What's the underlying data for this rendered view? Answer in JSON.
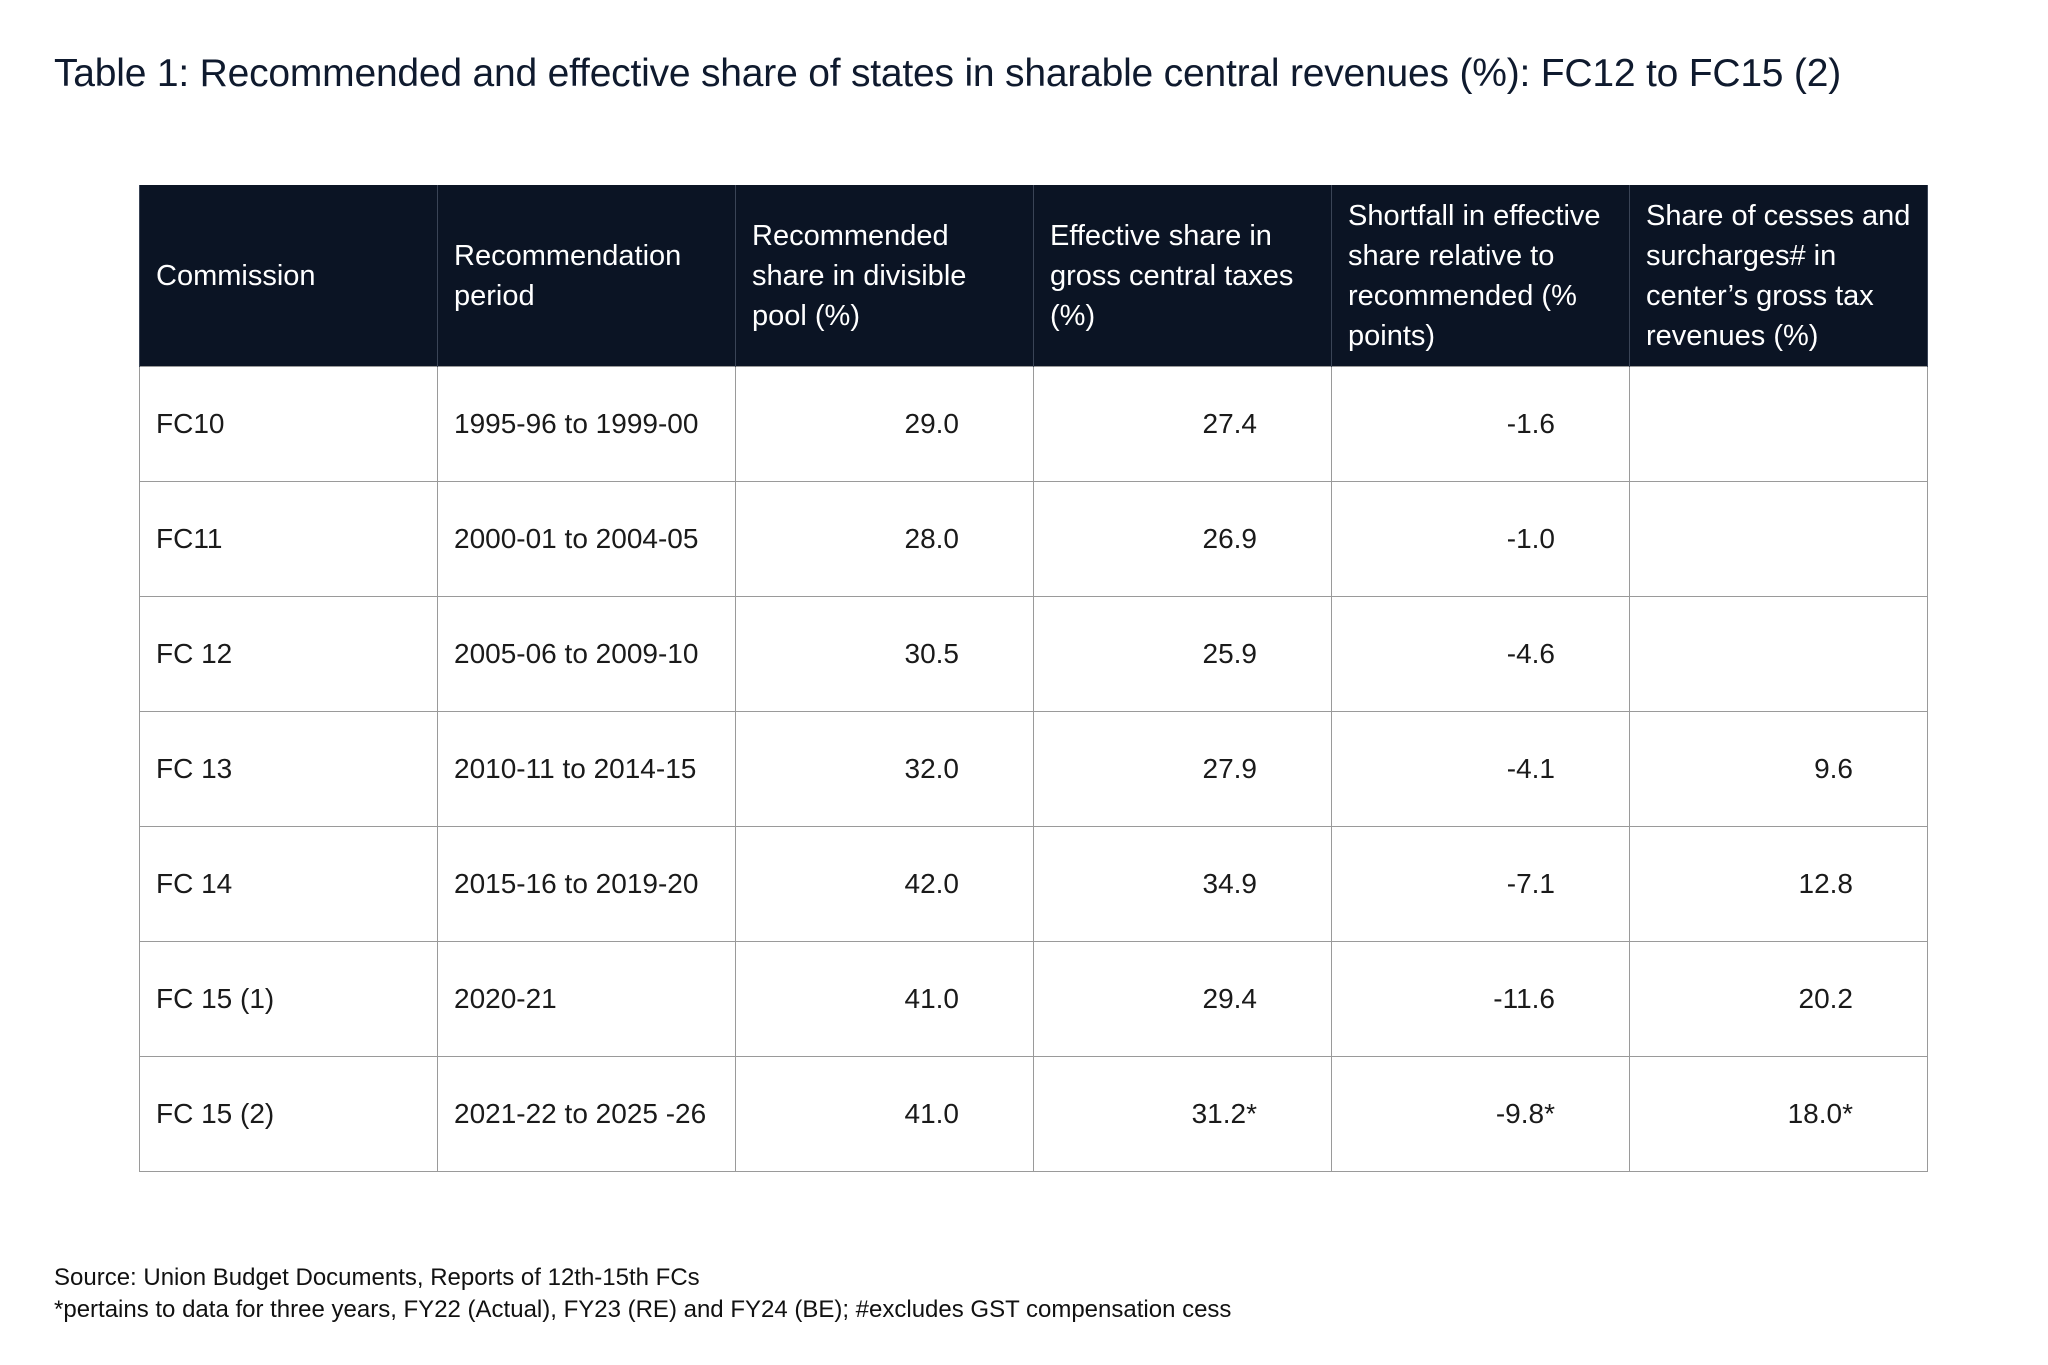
{
  "title": "Table 1: Recommended and effective share of states in sharable central revenues (%): FC12 to FC15 (2)",
  "table": {
    "headers": [
      "Commission",
      "Recommendation period",
      "Recommended share in divisible pool (%)",
      "Effective share in gross central taxes (%)",
      "Shortfall in effective share relative to recommended (% points)",
      "Share of cesses and surcharges# in center’s gross tax revenues (%)"
    ],
    "rows": [
      [
        "FC10",
        "1995-96 to 1999-00",
        "29.0",
        "27.4",
        "-1.6",
        ""
      ],
      [
        "FC11",
        "2000-01 to 2004-05",
        "28.0",
        "26.9",
        "-1.0",
        ""
      ],
      [
        "FC 12",
        "2005-06 to 2009-10",
        "30.5",
        "25.9",
        "-4.6",
        ""
      ],
      [
        "FC 13",
        "2010-11 to 2014-15",
        "32.0",
        "27.9",
        "-4.1",
        "9.6"
      ],
      [
        "FC 14",
        "2015-16 to 2019-20",
        "42.0",
        "34.9",
        "-7.1",
        "12.8"
      ],
      [
        "FC 15 (1)",
        "2020-21",
        "41.0",
        "29.4",
        "-11.6",
        "20.2"
      ],
      [
        "FC 15 (2)",
        "2021-22 to 2025 -26",
        "41.0",
        "31.2*",
        "-9.8*",
        "18.0*"
      ]
    ]
  },
  "footnotes": {
    "source": "Source: Union Budget Documents, Reports of 12th-15th FCs",
    "note": "*pertains to data for three years, FY22 (Actual), FY23 (RE) and FY24 (BE); #excludes GST compensation cess"
  }
}
